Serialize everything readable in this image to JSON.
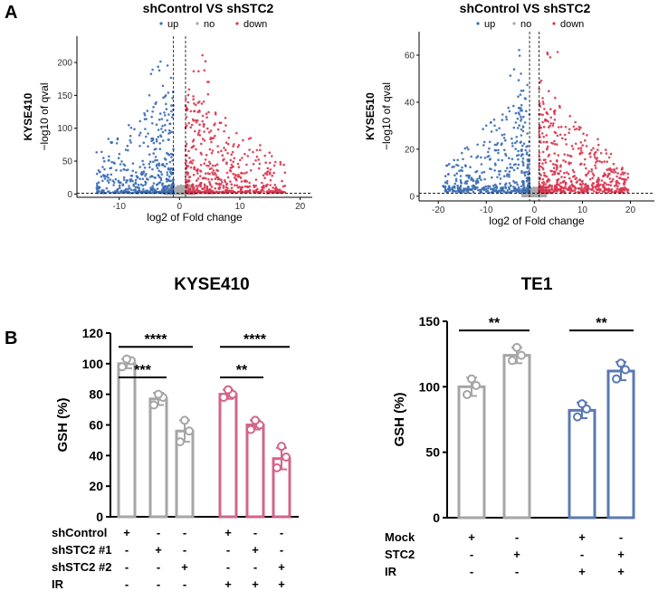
{
  "panel_labels": {
    "a": "A",
    "b": "B"
  },
  "colors": {
    "up": "#3b6db3",
    "no": "#a8a8a8",
    "down": "#d9364f",
    "kyse_grey": "#a6a6a6",
    "kyse_pink": "#d1668a",
    "te1_grey": "#a6a6a6",
    "te1_blue": "#5a79b3"
  },
  "chart_data": [
    {
      "type": "scatter",
      "title": "shControl VS shSTC2",
      "legend": [
        "up",
        "no",
        "down"
      ],
      "row_label": "KYSE410",
      "xlabel": "log2 of Fold change",
      "ylabel": "−log10 of qval",
      "xlim": [
        -17,
        22
      ],
      "ylim": [
        -5,
        240
      ],
      "xticks": [
        "-10",
        "0",
        "10",
        "20"
      ],
      "xtick_values": [
        -10,
        0,
        10,
        20
      ],
      "yticks": [
        "0",
        "50",
        "100",
        "150",
        "200"
      ],
      "ytick_values": [
        0,
        50,
        100,
        150,
        200
      ],
      "thresholds": {
        "fc": [
          -1,
          1
        ],
        "q": 1.3
      },
      "seed": 7
    },
    {
      "type": "scatter",
      "title": "shControl VS shSTC2",
      "legend": [
        "up",
        "no",
        "down"
      ],
      "row_label": "KYSE510",
      "xlabel": "log2 of Fold change",
      "ylabel": "−log10 of qval",
      "xlim": [
        -24,
        25
      ],
      "ylim": [
        -2,
        70
      ],
      "xticks": [
        "-20",
        "-10",
        "0",
        "10",
        "20"
      ],
      "xtick_values": [
        -20,
        -10,
        0,
        10,
        20
      ],
      "yticks": [
        "0",
        "20",
        "40",
        "60"
      ],
      "ytick_values": [
        0,
        20,
        40,
        60
      ],
      "thresholds": {
        "fc": [
          -1,
          1
        ],
        "q": 1.3
      },
      "seed": 13
    },
    {
      "type": "bar",
      "title": "KYSE410",
      "ylabel": "GSH (%)",
      "ylim": [
        0,
        120
      ],
      "yticks": [
        "0",
        "20",
        "40",
        "60",
        "80",
        "100",
        "120"
      ],
      "bars": [
        {
          "value": 100,
          "err": 3,
          "points": [
            98,
            102,
            103
          ],
          "group": "grey"
        },
        {
          "value": 77,
          "err": 4,
          "points": [
            73,
            78,
            80
          ],
          "group": "grey"
        },
        {
          "value": 56,
          "err": 7,
          "points": [
            49,
            56,
            63
          ],
          "group": "grey"
        },
        {
          "value": 80,
          "err": 3,
          "points": [
            78,
            80,
            83
          ],
          "group": "pink"
        },
        {
          "value": 60,
          "err": 3,
          "points": [
            57,
            60,
            63
          ],
          "group": "pink"
        },
        {
          "value": 38,
          "err": 7,
          "points": [
            32,
            39,
            46
          ],
          "group": "pink"
        }
      ],
      "significance": [
        {
          "from": 0,
          "to": 2,
          "label": "****",
          "y": 111
        },
        {
          "from": 0,
          "to": 1,
          "label": "***",
          "y": 91
        },
        {
          "from": 3,
          "to": 5,
          "label": "****",
          "y": 111
        },
        {
          "from": 3,
          "to": 4,
          "label": "**",
          "y": 91
        }
      ],
      "conditions": [
        {
          "label": "shControl",
          "marks": [
            "+",
            "-",
            "-",
            "+",
            "-",
            "-"
          ]
        },
        {
          "label": "shSTC2 #1",
          "marks": [
            "-",
            "+",
            "-",
            "-",
            "+",
            "-"
          ]
        },
        {
          "label": "shSTC2 #2",
          "marks": [
            "-",
            "-",
            "+",
            "-",
            "-",
            "+"
          ]
        },
        {
          "label": "IR",
          "marks": [
            "-",
            "-",
            "-",
            "+",
            "+",
            "+"
          ]
        }
      ]
    },
    {
      "type": "bar",
      "title": "TE1",
      "ylabel": "GSH (%)",
      "ylim": [
        0,
        150
      ],
      "yticks": [
        "0",
        "50",
        "100",
        "150"
      ],
      "bars": [
        {
          "value": 100,
          "err": 7,
          "points": [
            94,
            101,
            106
          ],
          "group": "grey"
        },
        {
          "value": 124,
          "err": 6,
          "points": [
            120,
            124,
            130
          ],
          "group": "grey"
        },
        {
          "value": 82,
          "err": 6,
          "points": [
            77,
            83,
            87
          ],
          "group": "blue"
        },
        {
          "value": 112,
          "err": 7,
          "points": [
            106,
            113,
            118
          ],
          "group": "blue"
        }
      ],
      "significance": [
        {
          "from": 0,
          "to": 1,
          "label": "**",
          "y": 143
        },
        {
          "from": 2,
          "to": 3,
          "label": "**",
          "y": 143
        }
      ],
      "conditions": [
        {
          "label": "Mock",
          "marks": [
            "+",
            "-",
            "+",
            "-"
          ]
        },
        {
          "label": "STC2",
          "marks": [
            "-",
            "+",
            "-",
            "+"
          ]
        },
        {
          "label": "IR",
          "marks": [
            "-",
            "-",
            "+",
            "+"
          ]
        }
      ]
    }
  ]
}
